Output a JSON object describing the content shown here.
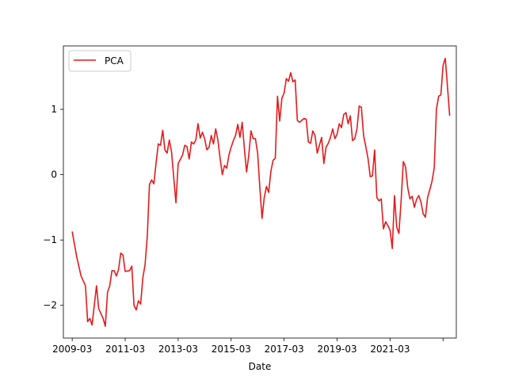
{
  "chart_data": {
    "type": "line",
    "title": "",
    "xlabel": "Date",
    "ylabel": "",
    "x_tick_labels": [
      "2009-03",
      "2011-03",
      "2013-03",
      "2015-03",
      "2017-03",
      "2019-03",
      "2021-03"
    ],
    "x_range": [
      "2008-11",
      "2023-09"
    ],
    "ylim": [
      -2.5,
      1.97
    ],
    "yticks": [
      -2,
      -1,
      0,
      1
    ],
    "grid": false,
    "legend_position": "upper-left",
    "series": [
      {
        "name": "PCA",
        "color": "#e41a1c",
        "points": [
          [
            "2009-03",
            -0.87
          ],
          [
            "2009-05",
            -1.25
          ],
          [
            "2009-07",
            -1.55
          ],
          [
            "2009-09",
            -1.7
          ],
          [
            "2009-10",
            -2.25
          ],
          [
            "2009-11",
            -2.2
          ],
          [
            "2009-12",
            -2.3
          ],
          [
            "2010-01",
            -2.0
          ],
          [
            "2010-02",
            -1.7
          ],
          [
            "2010-03",
            -2.05
          ],
          [
            "2010-05",
            -2.2
          ],
          [
            "2010-06",
            -2.32
          ],
          [
            "2010-07",
            -1.8
          ],
          [
            "2010-08",
            -1.7
          ],
          [
            "2010-09",
            -1.47
          ],
          [
            "2010-10",
            -1.47
          ],
          [
            "2010-11",
            -1.55
          ],
          [
            "2010-12",
            -1.45
          ],
          [
            "2011-01",
            -1.2
          ],
          [
            "2011-02",
            -1.23
          ],
          [
            "2011-03",
            -1.48
          ],
          [
            "2011-05",
            -1.47
          ],
          [
            "2011-06",
            -1.4
          ],
          [
            "2011-07",
            -2.0
          ],
          [
            "2011-08",
            -2.07
          ],
          [
            "2011-09",
            -1.93
          ],
          [
            "2011-10",
            -1.98
          ],
          [
            "2011-11",
            -1.58
          ],
          [
            "2011-12",
            -1.38
          ],
          [
            "2012-01",
            -0.95
          ],
          [
            "2012-02",
            -0.15
          ],
          [
            "2012-03",
            -0.08
          ],
          [
            "2012-04",
            -0.14
          ],
          [
            "2012-05",
            0.18
          ],
          [
            "2012-06",
            0.47
          ],
          [
            "2012-07",
            0.45
          ],
          [
            "2012-08",
            0.68
          ],
          [
            "2012-09",
            0.38
          ],
          [
            "2012-10",
            0.33
          ],
          [
            "2012-11",
            0.53
          ],
          [
            "2012-12",
            0.35
          ],
          [
            "2013-01",
            -0.05
          ],
          [
            "2013-02",
            -0.43
          ],
          [
            "2013-03",
            0.17
          ],
          [
            "2013-05",
            0.3
          ],
          [
            "2013-06",
            0.45
          ],
          [
            "2013-07",
            0.43
          ],
          [
            "2013-08",
            0.24
          ],
          [
            "2013-09",
            0.5
          ],
          [
            "2013-10",
            0.47
          ],
          [
            "2013-11",
            0.53
          ],
          [
            "2013-12",
            0.78
          ],
          [
            "2014-01",
            0.56
          ],
          [
            "2014-02",
            0.65
          ],
          [
            "2014-03",
            0.55
          ],
          [
            "2014-04",
            0.38
          ],
          [
            "2014-05",
            0.42
          ],
          [
            "2014-06",
            0.6
          ],
          [
            "2014-07",
            0.47
          ],
          [
            "2014-08",
            0.7
          ],
          [
            "2014-09",
            0.53
          ],
          [
            "2014-10",
            0.25
          ],
          [
            "2014-11",
            0.0
          ],
          [
            "2014-12",
            0.14
          ],
          [
            "2015-01",
            0.1
          ],
          [
            "2015-02",
            0.3
          ],
          [
            "2015-03",
            0.42
          ],
          [
            "2015-04",
            0.52
          ],
          [
            "2015-05",
            0.6
          ],
          [
            "2015-06",
            0.77
          ],
          [
            "2015-07",
            0.57
          ],
          [
            "2015-08",
            0.8
          ],
          [
            "2015-09",
            0.4
          ],
          [
            "2015-10",
            0.04
          ],
          [
            "2015-11",
            0.3
          ],
          [
            "2015-12",
            0.67
          ],
          [
            "2016-01",
            0.55
          ],
          [
            "2016-02",
            0.55
          ],
          [
            "2016-03",
            0.33
          ],
          [
            "2016-04",
            -0.2
          ],
          [
            "2016-05",
            -0.67
          ],
          [
            "2016-06",
            -0.35
          ],
          [
            "2016-07",
            -0.18
          ],
          [
            "2016-08",
            -0.27
          ],
          [
            "2016-09",
            0.05
          ],
          [
            "2016-10",
            0.22
          ],
          [
            "2016-11",
            0.25
          ],
          [
            "2016-12",
            1.2
          ],
          [
            "2017-01",
            0.82
          ],
          [
            "2017-02",
            1.17
          ],
          [
            "2017-03",
            1.25
          ],
          [
            "2017-04",
            1.47
          ],
          [
            "2017-05",
            1.43
          ],
          [
            "2017-06",
            1.56
          ],
          [
            "2017-07",
            1.42
          ],
          [
            "2017-08",
            1.45
          ],
          [
            "2017-09",
            0.83
          ],
          [
            "2017-10",
            0.8
          ],
          [
            "2017-11",
            0.83
          ],
          [
            "2017-12",
            0.86
          ],
          [
            "2018-01",
            0.85
          ],
          [
            "2018-02",
            0.5
          ],
          [
            "2018-03",
            0.48
          ],
          [
            "2018-04",
            0.67
          ],
          [
            "2018-05",
            0.6
          ],
          [
            "2018-06",
            0.33
          ],
          [
            "2018-07",
            0.45
          ],
          [
            "2018-08",
            0.57
          ],
          [
            "2018-09",
            0.17
          ],
          [
            "2018-10",
            0.42
          ],
          [
            "2018-11",
            0.48
          ],
          [
            "2018-12",
            0.57
          ],
          [
            "2019-01",
            0.7
          ],
          [
            "2019-02",
            0.55
          ],
          [
            "2019-03",
            0.62
          ],
          [
            "2019-04",
            0.78
          ],
          [
            "2019-05",
            0.72
          ],
          [
            "2019-06",
            0.92
          ],
          [
            "2019-07",
            0.95
          ],
          [
            "2019-08",
            0.78
          ],
          [
            "2019-09",
            0.9
          ],
          [
            "2019-10",
            0.52
          ],
          [
            "2019-11",
            0.55
          ],
          [
            "2019-12",
            0.7
          ],
          [
            "2020-01",
            1.05
          ],
          [
            "2020-02",
            1.03
          ],
          [
            "2020-03",
            0.6
          ],
          [
            "2020-04",
            0.43
          ],
          [
            "2020-05",
            0.25
          ],
          [
            "2020-06",
            -0.03
          ],
          [
            "2020-07",
            -0.02
          ],
          [
            "2020-08",
            0.38
          ],
          [
            "2020-09",
            -0.35
          ],
          [
            "2020-10",
            -0.4
          ],
          [
            "2020-11",
            -0.37
          ],
          [
            "2020-12",
            -0.83
          ],
          [
            "2021-01",
            -0.72
          ],
          [
            "2021-02",
            -0.78
          ],
          [
            "2021-03",
            -0.85
          ],
          [
            "2021-04",
            -1.13
          ],
          [
            "2021-05",
            -0.32
          ],
          [
            "2021-06",
            -0.8
          ],
          [
            "2021-07",
            -0.9
          ],
          [
            "2021-08",
            -0.4
          ],
          [
            "2021-09",
            0.2
          ],
          [
            "2021-10",
            0.12
          ],
          [
            "2021-11",
            -0.2
          ],
          [
            "2021-12",
            -0.37
          ],
          [
            "2022-01",
            -0.33
          ],
          [
            "2022-02",
            -0.5
          ],
          [
            "2022-03",
            -0.38
          ],
          [
            "2022-04",
            -0.32
          ],
          [
            "2022-05",
            -0.42
          ],
          [
            "2022-06",
            -0.6
          ],
          [
            "2022-07",
            -0.65
          ],
          [
            "2022-08",
            -0.35
          ],
          [
            "2022-09",
            -0.23
          ],
          [
            "2022-10",
            -0.1
          ],
          [
            "2022-11",
            0.1
          ],
          [
            "2022-12",
            1.0
          ],
          [
            "2023-01",
            1.2
          ],
          [
            "2023-02",
            1.22
          ],
          [
            "2023-03",
            1.67
          ],
          [
            "2023-04",
            1.78
          ],
          [
            "2023-05",
            1.35
          ],
          [
            "2023-06",
            0.9
          ]
        ]
      }
    ]
  }
}
